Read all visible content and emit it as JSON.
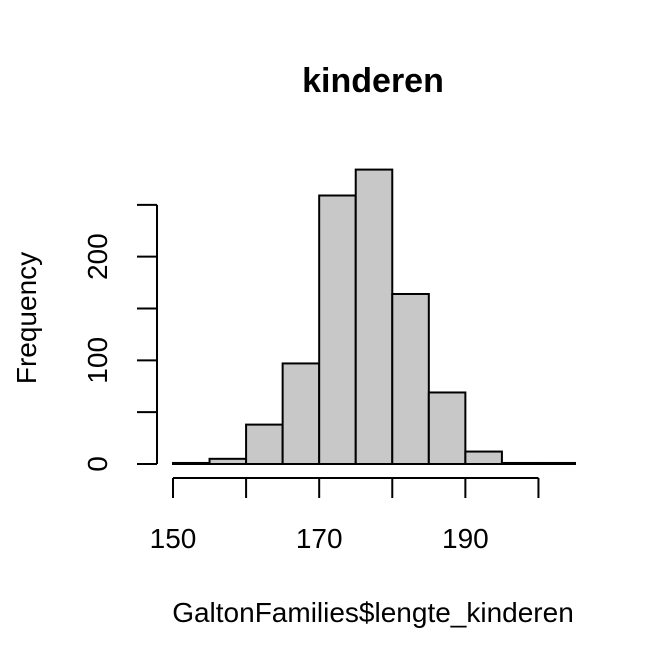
{
  "chart_data": {
    "type": "bar",
    "title": "kinderen",
    "xlabel": "GaltonFamilies$lengte_kinderen",
    "ylabel": "Frequency",
    "bins": [
      {
        "start": 150,
        "end": 155,
        "count": 1
      },
      {
        "start": 155,
        "end": 160,
        "count": 5
      },
      {
        "start": 160,
        "end": 165,
        "count": 38
      },
      {
        "start": 165,
        "end": 170,
        "count": 97
      },
      {
        "start": 170,
        "end": 175,
        "count": 259
      },
      {
        "start": 175,
        "end": 180,
        "count": 284
      },
      {
        "start": 180,
        "end": 185,
        "count": 164
      },
      {
        "start": 185,
        "end": 190,
        "count": 69
      },
      {
        "start": 190,
        "end": 195,
        "count": 12
      },
      {
        "start": 195,
        "end": 200,
        "count": 1
      },
      {
        "start": 200,
        "end": 205,
        "count": 1
      }
    ],
    "xticks": [
      150,
      160,
      170,
      180,
      190,
      200
    ],
    "xtick_labels": [
      "150",
      "170",
      "190"
    ],
    "yticks": [
      0,
      50,
      100,
      150,
      200,
      250
    ],
    "ytick_labels": [
      "0",
      "100",
      "200"
    ],
    "xlim": [
      150,
      205
    ],
    "ylim": [
      0,
      300
    ],
    "grid": false,
    "bar_fill": "#c8c8c8",
    "bar_stroke": "#000000"
  }
}
